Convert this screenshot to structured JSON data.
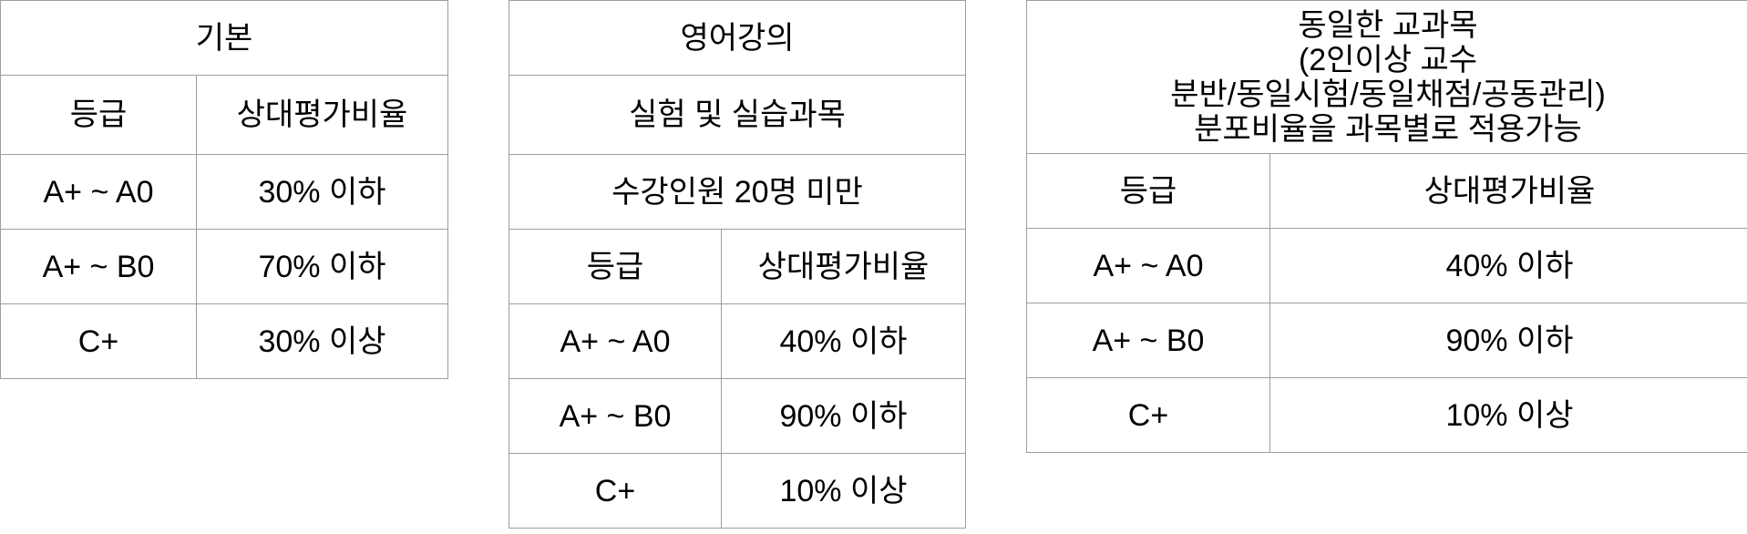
{
  "tables": {
    "basic": {
      "title": "기본",
      "header": {
        "grade": "등급",
        "ratio": "상대평가비율"
      },
      "rows": [
        {
          "grade": "A+ ~ A0",
          "ratio": "30% 이하"
        },
        {
          "grade": "A+ ~ B0",
          "ratio": "70% 이하"
        },
        {
          "grade": "C+",
          "ratio": "30% 이상"
        }
      ]
    },
    "english": {
      "title": "영어강의",
      "subtitle1": "실험 및 실습과목",
      "subtitle2": "수강인원 20명 미만",
      "header": {
        "grade": "등급",
        "ratio": "상대평가비율"
      },
      "rows": [
        {
          "grade": "A+ ~ A0",
          "ratio": "40% 이하"
        },
        {
          "grade": "A+ ~ B0",
          "ratio": "90% 이하"
        },
        {
          "grade": "C+",
          "ratio": "10% 이상"
        }
      ]
    },
    "same_course": {
      "title_lines": [
        "동일한 교과목",
        "(2인이상 교수",
        "분반/동일시험/동일채점/공동관리)",
        "분포비율을 과목별로 적용가능"
      ],
      "header": {
        "grade": "등급",
        "ratio": "상대평가비율"
      },
      "rows": [
        {
          "grade": "A+ ~ A0",
          "ratio": "40% 이하"
        },
        {
          "grade": "A+ ~ B0",
          "ratio": "90% 이하"
        },
        {
          "grade": "C+",
          "ratio": "10% 이상"
        }
      ]
    }
  }
}
